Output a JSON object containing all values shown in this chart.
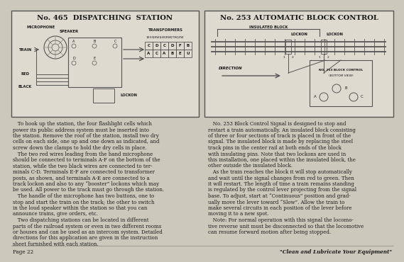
{
  "bg_color": "#ccc8bc",
  "box_color": "#dedad0",
  "border_color": "#444444",
  "text_color": "#1a1a1a",
  "title_left": "No. 465  DISPATCHING  STATION",
  "title_right": "No. 253 AUTOMATIC BLOCK CONTROL",
  "page_number": "Page 22",
  "tagline": "\"Clean and Lubricate Your Equipment\"",
  "left_body_lines": [
    "   To hook up the station, the four flashlight cells which",
    "power its public address system must be inserted into",
    "the station. Remove the roof of the station, install two dry",
    "cells on each side, one up and one down as indicated, and",
    "screw down the clamps to hold the dry cells in place.",
    "   The two red wires leading from the hand microphone",
    "should be connected to terminals A-F on the bottom of the",
    "station, while the two black wires are connected to ter-",
    "minals C-D. Terminals E-F are connected to transformer",
    "posts, as shown, and terminals A-E are connected to a",
    "track lockon and also to any “booster” lockons which may",
    "be used. All power to the track must go through the station.",
    "   The handle of the microphone has two buttons, one to",
    "stop and start the train on the track; the other to switch",
    "in the loud speaker within the station so that you can",
    "announce trains, give orders, etc.",
    "   Two dispatching stations can be located in different",
    "parts of the railroad system or even in two different rooms",
    "or houses and can be used as an intercom system. Detailed",
    "directions for this application are given in the instruction",
    "sheet furnished with each station."
  ],
  "right_body_lines": [
    "   No. 253 Block Control Signal is designed to stop and",
    "restart a train automatically. An insulated block consisting",
    "of three or four sections of track is placed in front of the",
    "signal. The insulated block is made by replacing the steel",
    "track pins in the center rail at both ends of the block",
    "with insulating pins. Note that two lockons are used in",
    "this installation, one placed within the insulated block, the",
    "other outside the insulated block.",
    "   As the train reaches the block it will stop automatically",
    "and wait until the signal changes from red to green. Then",
    "it will restart. The length of time a train remains standing",
    "is regulated by the control lever projecting from the signal",
    "base. To adjust, start at “Continuous” position and grad-",
    "ually move the lever toward “Slow”. Allow the train to",
    "make several circuits in each position of the lever before",
    "moving it to a new spot.",
    "   Note: For normal operation with this signal the locomo-",
    "tive reverse unit must be disconnected so that the locomotive",
    "can resume forward motion after being stopped."
  ]
}
